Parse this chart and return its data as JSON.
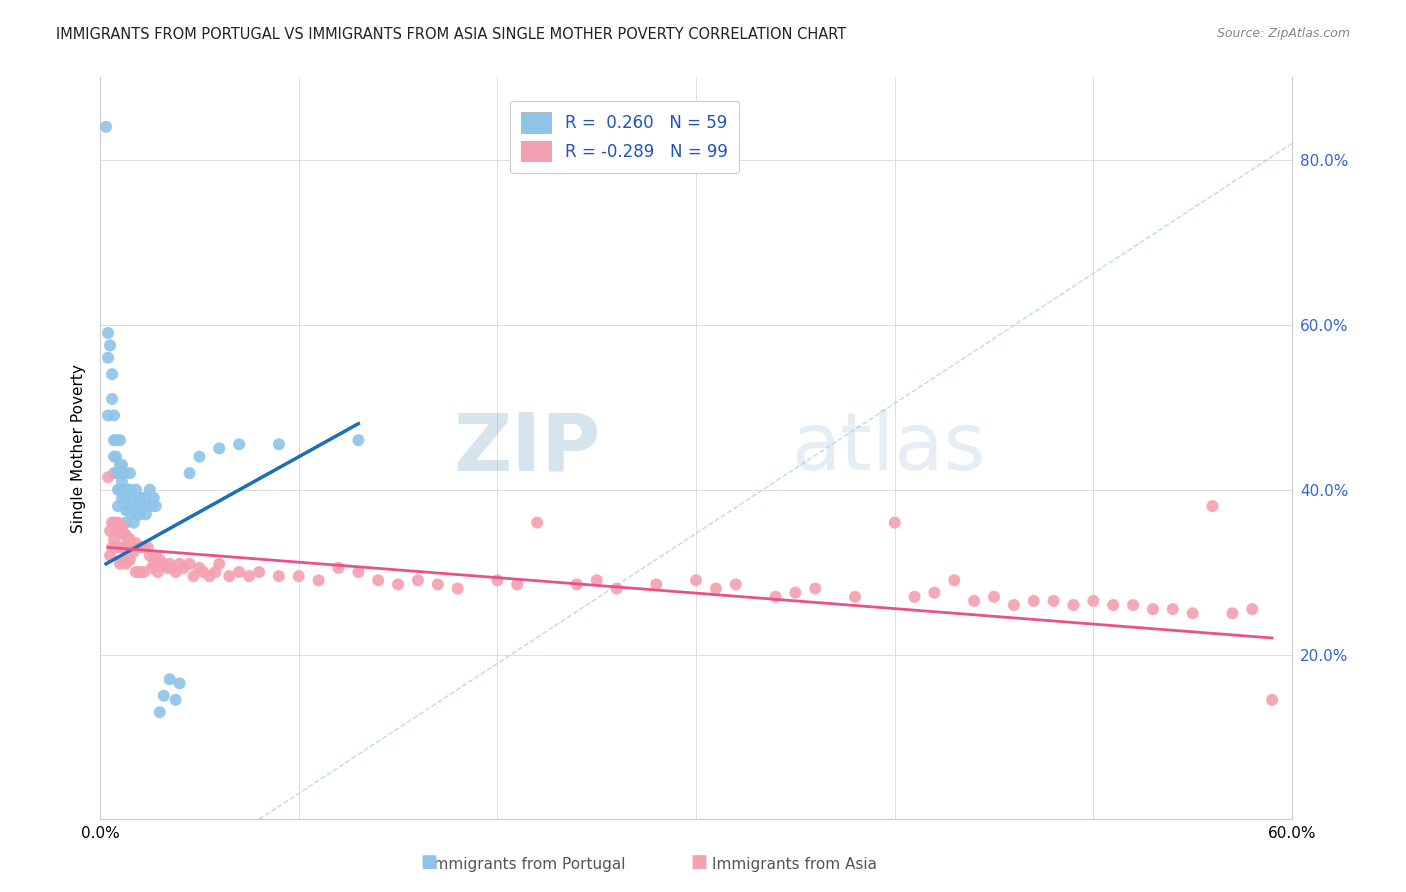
{
  "title": "IMMIGRANTS FROM PORTUGAL VS IMMIGRANTS FROM ASIA SINGLE MOTHER POVERTY CORRELATION CHART",
  "source": "Source: ZipAtlas.com",
  "ylabel": "Single Mother Poverty",
  "xlim": [
    0.0,
    0.6
  ],
  "ylim": [
    0.0,
    0.9
  ],
  "yticks": [
    0.2,
    0.4,
    0.6,
    0.8
  ],
  "ytick_labels": [
    "20.0%",
    "40.0%",
    "60.0%",
    "80.0%"
  ],
  "xticks": [
    0.0,
    0.1,
    0.2,
    0.3,
    0.4,
    0.5,
    0.6
  ],
  "xtick_labels": [
    "0.0%",
    "",
    "",
    "",
    "",
    "",
    "60.0%"
  ],
  "color_portugal": "#8ec4e8",
  "color_asia": "#f4a0b0",
  "color_portugal_line": "#1a6fba",
  "color_asia_line": "#e8518a",
  "color_diag_line": "#b0ccee",
  "watermark_zip": "ZIP",
  "watermark_atlas": "atlas",
  "portugal_points_x": [
    0.003,
    0.004,
    0.004,
    0.004,
    0.005,
    0.006,
    0.006,
    0.007,
    0.007,
    0.007,
    0.007,
    0.008,
    0.008,
    0.009,
    0.009,
    0.009,
    0.01,
    0.01,
    0.01,
    0.011,
    0.011,
    0.011,
    0.012,
    0.012,
    0.013,
    0.013,
    0.013,
    0.014,
    0.014,
    0.015,
    0.015,
    0.016,
    0.016,
    0.017,
    0.017,
    0.018,
    0.018,
    0.019,
    0.02,
    0.02,
    0.021,
    0.022,
    0.023,
    0.024,
    0.025,
    0.026,
    0.027,
    0.028,
    0.03,
    0.032,
    0.035,
    0.038,
    0.04,
    0.045,
    0.05,
    0.06,
    0.07,
    0.09,
    0.13
  ],
  "portugal_points_y": [
    0.84,
    0.59,
    0.56,
    0.49,
    0.575,
    0.54,
    0.51,
    0.49,
    0.46,
    0.44,
    0.42,
    0.46,
    0.44,
    0.42,
    0.4,
    0.38,
    0.46,
    0.43,
    0.4,
    0.43,
    0.41,
    0.39,
    0.42,
    0.4,
    0.39,
    0.375,
    0.36,
    0.4,
    0.38,
    0.42,
    0.4,
    0.39,
    0.37,
    0.38,
    0.36,
    0.4,
    0.38,
    0.37,
    0.39,
    0.37,
    0.38,
    0.39,
    0.37,
    0.38,
    0.4,
    0.38,
    0.39,
    0.38,
    0.13,
    0.15,
    0.17,
    0.145,
    0.165,
    0.42,
    0.44,
    0.45,
    0.455,
    0.455,
    0.46
  ],
  "portugal_trend_x": [
    0.003,
    0.13
  ],
  "portugal_trend_y": [
    0.31,
    0.48
  ],
  "asia_points_x": [
    0.004,
    0.005,
    0.005,
    0.006,
    0.006,
    0.007,
    0.007,
    0.008,
    0.008,
    0.009,
    0.009,
    0.01,
    0.01,
    0.011,
    0.011,
    0.012,
    0.012,
    0.013,
    0.013,
    0.014,
    0.015,
    0.015,
    0.016,
    0.017,
    0.018,
    0.018,
    0.02,
    0.02,
    0.022,
    0.022,
    0.024,
    0.025,
    0.026,
    0.027,
    0.028,
    0.029,
    0.03,
    0.032,
    0.034,
    0.035,
    0.036,
    0.038,
    0.04,
    0.042,
    0.045,
    0.047,
    0.05,
    0.052,
    0.055,
    0.058,
    0.06,
    0.065,
    0.07,
    0.075,
    0.08,
    0.09,
    0.1,
    0.11,
    0.12,
    0.13,
    0.14,
    0.15,
    0.16,
    0.17,
    0.18,
    0.2,
    0.21,
    0.22,
    0.24,
    0.25,
    0.26,
    0.28,
    0.3,
    0.31,
    0.32,
    0.34,
    0.35,
    0.36,
    0.38,
    0.4,
    0.41,
    0.42,
    0.43,
    0.44,
    0.45,
    0.46,
    0.47,
    0.48,
    0.49,
    0.5,
    0.51,
    0.52,
    0.53,
    0.54,
    0.55,
    0.56,
    0.57,
    0.58,
    0.59
  ],
  "asia_points_y": [
    0.415,
    0.35,
    0.32,
    0.36,
    0.33,
    0.36,
    0.34,
    0.35,
    0.33,
    0.36,
    0.33,
    0.35,
    0.31,
    0.355,
    0.33,
    0.345,
    0.315,
    0.345,
    0.31,
    0.335,
    0.34,
    0.315,
    0.33,
    0.325,
    0.335,
    0.3,
    0.33,
    0.3,
    0.33,
    0.3,
    0.33,
    0.32,
    0.305,
    0.31,
    0.32,
    0.3,
    0.315,
    0.31,
    0.305,
    0.31,
    0.305,
    0.3,
    0.31,
    0.305,
    0.31,
    0.295,
    0.305,
    0.3,
    0.295,
    0.3,
    0.31,
    0.295,
    0.3,
    0.295,
    0.3,
    0.295,
    0.295,
    0.29,
    0.305,
    0.3,
    0.29,
    0.285,
    0.29,
    0.285,
    0.28,
    0.29,
    0.285,
    0.36,
    0.285,
    0.29,
    0.28,
    0.285,
    0.29,
    0.28,
    0.285,
    0.27,
    0.275,
    0.28,
    0.27,
    0.36,
    0.27,
    0.275,
    0.29,
    0.265,
    0.27,
    0.26,
    0.265,
    0.265,
    0.26,
    0.265,
    0.26,
    0.26,
    0.255,
    0.255,
    0.25,
    0.38,
    0.25,
    0.255,
    0.145
  ],
  "asia_trend_x": [
    0.004,
    0.59
  ],
  "asia_trend_y": [
    0.33,
    0.22
  ],
  "diag_line_x": [
    0.08,
    0.6
  ],
  "diag_line_y": [
    0.0,
    0.82
  ]
}
